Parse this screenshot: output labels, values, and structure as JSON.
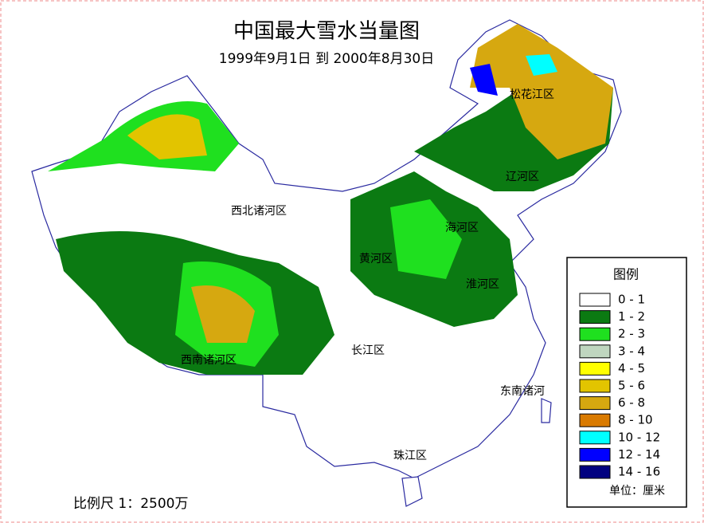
{
  "title": "中国最大雪水当量图",
  "subtitle": "1999年9月1日 到 2000年8月30日",
  "regions": [
    "松花江区",
    "辽河区",
    "西北诸河区",
    "海河区",
    "黄河区",
    "淮河区",
    "长江区",
    "西南诸河区",
    "东南诸河",
    "珠江区"
  ],
  "legend": {
    "title": "图例",
    "items": [
      {
        "label": "0 - 1",
        "color": "#ffffff"
      },
      {
        "label": "1 - 2",
        "color": "#0b7a12"
      },
      {
        "label": "2 - 3",
        "color": "#1fe01f"
      },
      {
        "label": "3 - 4",
        "color": "#bfd6bf"
      },
      {
        "label": "4 - 5",
        "color": "#ffff00"
      },
      {
        "label": "5 - 6",
        "color": "#e2c400"
      },
      {
        "label": "6 - 8",
        "color": "#d6a810"
      },
      {
        "label": "8 - 10",
        "color": "#d97a00"
      },
      {
        "label": "10 - 12",
        "color": "#00ffff"
      },
      {
        "label": "12 - 14",
        "color": "#0000ff"
      },
      {
        "label": "14 - 16",
        "color": "#000080"
      }
    ],
    "unit": "单位：厘米"
  },
  "scale": "比例尺  1：2500万"
}
